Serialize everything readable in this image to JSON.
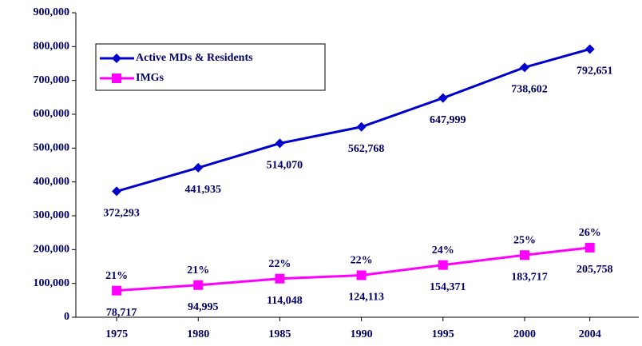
{
  "chart_data": {
    "type": "line",
    "x": [
      1975,
      1980,
      1985,
      1990,
      1995,
      2000,
      2004
    ],
    "xlim": [
      1972.5,
      2007
    ],
    "xticks": [
      1975,
      1980,
      1985,
      1990,
      1995,
      2000,
      2004
    ],
    "ylim": [
      0,
      900000
    ],
    "yticks": [
      0,
      {
        "value": 100000,
        "label": "100,000"
      },
      {
        "value": 200000,
        "label": "200,000"
      },
      {
        "value": 300000,
        "label": "300,000"
      },
      {
        "value": 400000,
        "label": "400,000"
      },
      {
        "value": 500000,
        "label": "500,000"
      },
      {
        "value": 600000,
        "label": "600,000"
      },
      {
        "value": 700000,
        "label": "700,000"
      },
      {
        "value": 800000,
        "label": "800,000"
      },
      {
        "value": 900000,
        "label": "900,000"
      }
    ],
    "grid": false,
    "legend": "upper-left",
    "series": [
      {
        "name": "Active MDs & Residents",
        "color": "#0000cc",
        "marker": "diamond",
        "values": [
          372293,
          441935,
          514070,
          562768,
          647999,
          738602,
          792651
        ],
        "value_labels": [
          "372,293",
          "441,935",
          "514,070",
          "562,768",
          "647,999",
          "738,602",
          "792,651"
        ]
      },
      {
        "name": "IMGs",
        "color": "#ff00ff",
        "marker": "square",
        "values": [
          78717,
          94995,
          114048,
          124113,
          154371,
          183717,
          205758
        ],
        "value_labels": [
          "78,717",
          "94,995",
          "114,048",
          "124,113",
          "154,371",
          "183,717",
          "205,758"
        ],
        "annotations": [
          "21%",
          "21%",
          "22%",
          "22%",
          "24%",
          "25%",
          "26%"
        ]
      }
    ]
  }
}
